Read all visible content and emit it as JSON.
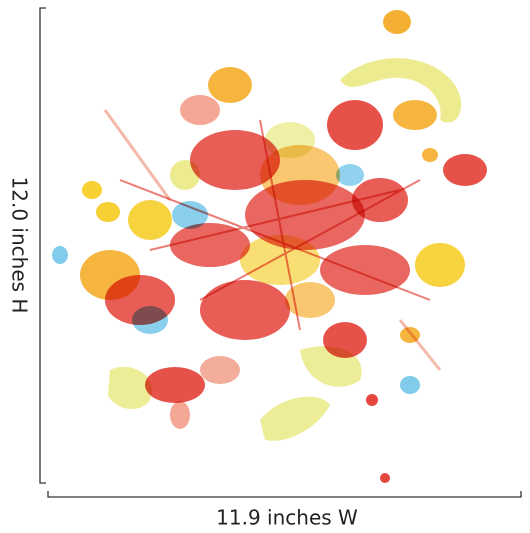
{
  "dimensions": {
    "height_label": "12.0 inches H",
    "width_label": "11.9 inches W"
  }
}
